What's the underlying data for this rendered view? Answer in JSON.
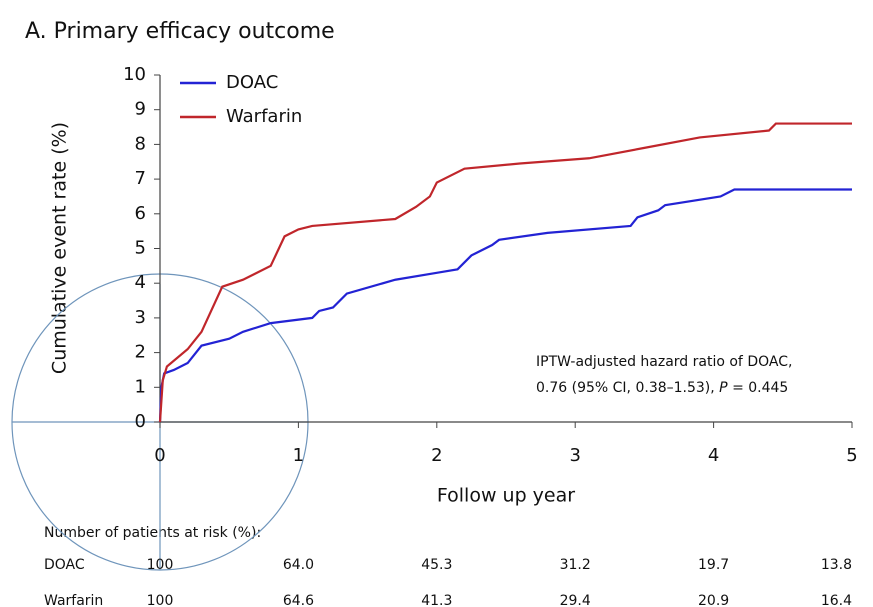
{
  "chart_data": {
    "type": "line",
    "title": "A. Primary efficacy outcome",
    "x_label": "Follow up year",
    "y_label": "Cumulative event rate (%)",
    "xlim": [
      0,
      5
    ],
    "xticks": [
      0,
      1,
      2,
      3,
      4,
      5
    ],
    "ylim": [
      0,
      10
    ],
    "yticks": [
      0,
      1,
      2,
      3,
      4,
      5,
      6,
      7,
      8,
      9,
      10
    ],
    "legend": "upper left",
    "series": [
      {
        "name": "DOAC",
        "color": "#2323d4",
        "x": [
          0,
          0.01,
          0.03,
          0.1,
          0.2,
          0.3,
          0.5,
          0.6,
          0.8,
          1.1,
          1.15,
          1.25,
          1.35,
          1.7,
          2.0,
          2.15,
          2.25,
          2.4,
          2.45,
          2.8,
          3.4,
          3.45,
          3.6,
          3.65,
          4.05,
          4.15,
          5
        ],
        "values": [
          0,
          1.0,
          1.4,
          1.5,
          1.7,
          2.2,
          2.4,
          2.6,
          2.85,
          3.0,
          3.2,
          3.3,
          3.7,
          4.1,
          4.3,
          4.4,
          4.8,
          5.1,
          5.25,
          5.45,
          5.65,
          5.9,
          6.1,
          6.25,
          6.5,
          6.7,
          6.7
        ]
      },
      {
        "name": "Warfarin",
        "color": "#c0262b",
        "x": [
          0,
          0.02,
          0.05,
          0.2,
          0.3,
          0.45,
          0.6,
          0.8,
          0.9,
          1.0,
          1.1,
          1.7,
          1.85,
          1.95,
          2.0,
          2.2,
          2.6,
          3.1,
          3.5,
          3.9,
          4.4,
          4.45,
          5
        ],
        "values": [
          0,
          1.2,
          1.6,
          2.1,
          2.6,
          3.9,
          4.1,
          4.5,
          5.35,
          5.55,
          5.65,
          5.85,
          6.2,
          6.5,
          6.9,
          7.3,
          7.45,
          7.6,
          7.9,
          8.2,
          8.4,
          8.6,
          8.6
        ]
      }
    ],
    "annotation": {
      "line1": "IPTW-adjusted hazard ratio of DOAC,",
      "line2_start": "0.76 (95% CI, 0.38–1.53), ",
      "line2_italic": "P",
      "line2_end": " = 0.445"
    },
    "risk_table": {
      "header": "Number of patients at risk (%):",
      "rows": [
        {
          "name": "DOAC",
          "values": [
            "100",
            "64.0",
            "45.3",
            "31.2",
            "19.7",
            "13.8"
          ]
        },
        {
          "name": "Warfarin",
          "values": [
            "100",
            "64.6",
            "41.3",
            "29.4",
            "20.9",
            "16.4"
          ]
        }
      ]
    }
  }
}
